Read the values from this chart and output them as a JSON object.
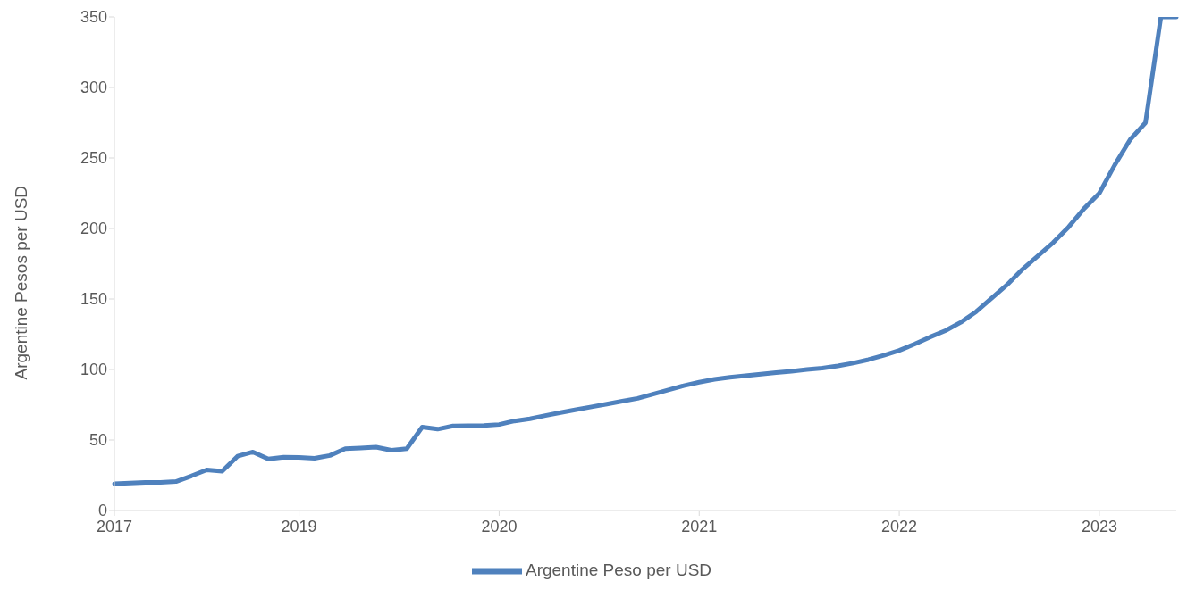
{
  "chart_data": {
    "type": "line",
    "ylabel": "Argentine Pesos per USD",
    "categories": [
      "2017",
      null,
      null,
      null,
      null,
      null,
      null,
      null,
      null,
      null,
      null,
      null,
      "2019",
      null,
      null,
      null,
      null,
      null,
      null,
      null,
      null,
      null,
      null,
      null,
      null,
      "2020",
      null,
      null,
      null,
      null,
      null,
      null,
      null,
      null,
      null,
      null,
      null,
      null,
      "2021",
      null,
      null,
      null,
      null,
      null,
      null,
      null,
      null,
      null,
      null,
      null,
      null,
      "2022",
      null,
      null,
      null,
      null,
      null,
      null,
      null,
      null,
      null,
      null,
      null,
      null,
      "2023",
      null,
      null,
      null,
      null,
      null
    ],
    "series": [
      {
        "name": "Argentine Peso per USD",
        "color": "#4f81bd",
        "values": [
          19,
          19.5,
          20,
          20,
          20.5,
          24.5,
          28.8,
          27.8,
          38.5,
          41.5,
          36.5,
          37.8,
          37.6,
          37,
          39,
          43.8,
          44.3,
          44.9,
          42.7,
          43.8,
          59.2,
          57.7,
          60,
          60.2,
          60.3,
          61,
          63.5,
          65,
          67.3,
          69.5,
          71.5,
          73.5,
          75.5,
          77.5,
          79.5,
          82.5,
          85.5,
          88.5,
          91,
          93,
          94.5,
          95.6,
          96.7,
          97.8,
          98.8,
          100,
          101,
          102.5,
          104.5,
          107,
          110,
          113.5,
          118,
          123,
          127.5,
          133.5,
          141,
          150.5,
          160,
          171,
          180.5,
          190,
          201,
          214,
          225,
          245,
          263,
          275,
          350,
          350
        ]
      }
    ],
    "ylim": [
      0,
      350
    ],
    "yticks": [
      0,
      50,
      100,
      150,
      200,
      250,
      300,
      350
    ],
    "grid": false,
    "legend": "bottom",
    "marker": "none",
    "line_style": "solid"
  }
}
